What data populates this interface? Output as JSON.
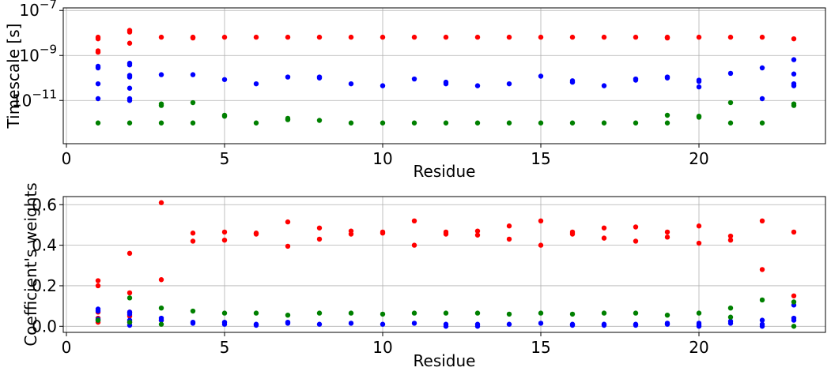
{
  "chart_data": [
    {
      "type": "scatter",
      "title": "",
      "xlabel": "Residue",
      "ylabel": "Timescale [s]",
      "yscale": "log",
      "xlim": [
        -0.1,
        24
      ],
      "ylim": [
        1.2e-13,
        1.3e-07
      ],
      "xticks": [
        0,
        5,
        10,
        15,
        20
      ],
      "xtick_labels": [
        "0",
        "5",
        "10",
        "15",
        "20"
      ],
      "yticks": [
        1e-11,
        1e-09,
        1e-07
      ],
      "ytick_labels": [
        [
          "10",
          "−11"
        ],
        [
          "10",
          "−9"
        ],
        [
          "10",
          "−7"
        ]
      ],
      "grid": true,
      "series": [
        {
          "color": "#ff0000",
          "points": [
            [
              1,
              5.5e-09
            ],
            [
              1,
              6.5e-09
            ],
            [
              1,
              1.4e-09
            ],
            [
              1,
              1.6e-09
            ],
            [
              2,
              1.1e-08
            ],
            [
              2,
              1.3e-08
            ],
            [
              2,
              3.5e-09
            ],
            [
              3,
              6.5e-09
            ],
            [
              4,
              6.5e-09
            ],
            [
              4,
              6e-09
            ],
            [
              5,
              6.5e-09
            ],
            [
              6,
              6.5e-09
            ],
            [
              7,
              6.5e-09
            ],
            [
              8,
              6.5e-09
            ],
            [
              9,
              6.5e-09
            ],
            [
              10,
              6.5e-09
            ],
            [
              11,
              6.5e-09
            ],
            [
              12,
              6.5e-09
            ],
            [
              13,
              6.5e-09
            ],
            [
              14,
              6.5e-09
            ],
            [
              15,
              6.5e-09
            ],
            [
              16,
              6.5e-09
            ],
            [
              17,
              6.5e-09
            ],
            [
              18,
              6.5e-09
            ],
            [
              19,
              6.5e-09
            ],
            [
              19,
              6e-09
            ],
            [
              20,
              6.5e-09
            ],
            [
              21,
              6.5e-09
            ],
            [
              22,
              6.5e-09
            ],
            [
              23,
              5.5e-09
            ]
          ]
        },
        {
          "color": "#0000ff",
          "points": [
            [
              1,
              2.8e-10
            ],
            [
              1,
              3.3e-10
            ],
            [
              1,
              5.5e-11
            ],
            [
              1,
              1.2e-11
            ],
            [
              2,
              4.5e-10
            ],
            [
              2,
              3.8e-10
            ],
            [
              2,
              1.3e-10
            ],
            [
              2,
              1.1e-10
            ],
            [
              2,
              3.5e-11
            ],
            [
              2,
              1.2e-11
            ],
            [
              2,
              1e-11
            ],
            [
              3,
              1.4e-10
            ],
            [
              4,
              1.4e-10
            ],
            [
              5,
              8.5e-11
            ],
            [
              6,
              5.5e-11
            ],
            [
              7,
              1.1e-10
            ],
            [
              8,
              1.1e-10
            ],
            [
              8,
              1e-10
            ],
            [
              9,
              5.5e-11
            ],
            [
              10,
              4.5e-11
            ],
            [
              11,
              9e-11
            ],
            [
              12,
              6.5e-11
            ],
            [
              12,
              5.5e-11
            ],
            [
              13,
              4.5e-11
            ],
            [
              14,
              5.5e-11
            ],
            [
              15,
              1.2e-10
            ],
            [
              16,
              7.5e-11
            ],
            [
              16,
              6.5e-11
            ],
            [
              17,
              4.5e-11
            ],
            [
              18,
              9e-11
            ],
            [
              18,
              8e-11
            ],
            [
              19,
              1.1e-10
            ],
            [
              19,
              1e-10
            ],
            [
              20,
              8e-11
            ],
            [
              20,
              7e-11
            ],
            [
              20,
              4e-11
            ],
            [
              21,
              1.6e-10
            ],
            [
              22,
              2.8e-10
            ],
            [
              22,
              1.2e-11
            ],
            [
              23,
              6.5e-10
            ],
            [
              23,
              1.5e-10
            ],
            [
              23,
              5.5e-11
            ],
            [
              23,
              4.5e-11
            ]
          ]
        },
        {
          "color": "#008000",
          "points": [
            [
              1,
              1e-12
            ],
            [
              2,
              1e-12
            ],
            [
              3,
              7e-12
            ],
            [
              3,
              6e-12
            ],
            [
              3,
              1e-12
            ],
            [
              4,
              8e-12
            ],
            [
              4,
              1e-12
            ],
            [
              5,
              2.2e-12
            ],
            [
              5,
              2e-12
            ],
            [
              6,
              1e-12
            ],
            [
              7,
              1.6e-12
            ],
            [
              7,
              1.4e-12
            ],
            [
              8,
              1.3e-12
            ],
            [
              9,
              1e-12
            ],
            [
              10,
              1e-12
            ],
            [
              11,
              1e-12
            ],
            [
              12,
              1e-12
            ],
            [
              13,
              1e-12
            ],
            [
              14,
              1e-12
            ],
            [
              15,
              1e-12
            ],
            [
              16,
              1e-12
            ],
            [
              17,
              1e-12
            ],
            [
              18,
              1e-12
            ],
            [
              19,
              2.2e-12
            ],
            [
              19,
              1e-12
            ],
            [
              20,
              2e-12
            ],
            [
              20,
              1.8e-12
            ],
            [
              21,
              8e-12
            ],
            [
              21,
              1e-12
            ],
            [
              22,
              1e-12
            ],
            [
              23,
              7e-12
            ],
            [
              23,
              6e-12
            ]
          ]
        }
      ]
    },
    {
      "type": "scatter",
      "title": "",
      "xlabel": "Residue",
      "ylabel": "Coefficient's weights",
      "yscale": "linear",
      "xlim": [
        -0.1,
        24
      ],
      "ylim": [
        -0.03,
        0.64
      ],
      "xticks": [
        0,
        5,
        10,
        15,
        20
      ],
      "xtick_labels": [
        "0",
        "5",
        "10",
        "15",
        "20"
      ],
      "yticks": [
        0.0,
        0.2,
        0.4,
        0.6
      ],
      "ytick_labels": [
        [
          "0.0"
        ],
        [
          "0.2"
        ],
        [
          "0.4"
        ],
        [
          "0.6"
        ]
      ],
      "grid": true,
      "series": [
        {
          "color": "#ff0000",
          "points": [
            [
              1,
              0.225
            ],
            [
              1,
              0.2
            ],
            [
              1,
              0.07
            ],
            [
              1,
              0.04
            ],
            [
              1,
              0.02
            ],
            [
              2,
              0.36
            ],
            [
              2,
              0.165
            ],
            [
              2,
              0.07
            ],
            [
              2,
              0.05
            ],
            [
              2,
              0.02
            ],
            [
              3,
              0.61
            ],
            [
              3,
              0.23
            ],
            [
              3,
              0.03
            ],
            [
              4,
              0.46
            ],
            [
              4,
              0.42
            ],
            [
              5,
              0.465
            ],
            [
              5,
              0.425
            ],
            [
              6,
              0.46
            ],
            [
              6,
              0.455
            ],
            [
              7,
              0.515
            ],
            [
              7,
              0.395
            ],
            [
              8,
              0.485
            ],
            [
              8,
              0.43
            ],
            [
              9,
              0.47
            ],
            [
              9,
              0.455
            ],
            [
              10,
              0.465
            ],
            [
              10,
              0.46
            ],
            [
              11,
              0.52
            ],
            [
              11,
              0.4
            ],
            [
              12,
              0.465
            ],
            [
              12,
              0.455
            ],
            [
              13,
              0.47
            ],
            [
              13,
              0.45
            ],
            [
              14,
              0.495
            ],
            [
              14,
              0.43
            ],
            [
              15,
              0.52
            ],
            [
              15,
              0.4
            ],
            [
              16,
              0.465
            ],
            [
              16,
              0.455
            ],
            [
              17,
              0.485
            ],
            [
              17,
              0.435
            ],
            [
              18,
              0.49
            ],
            [
              18,
              0.42
            ],
            [
              19,
              0.465
            ],
            [
              19,
              0.44
            ],
            [
              20,
              0.495
            ],
            [
              20,
              0.41
            ],
            [
              21,
              0.445
            ],
            [
              21,
              0.425
            ],
            [
              22,
              0.52
            ],
            [
              22,
              0.28
            ],
            [
              23,
              0.465
            ],
            [
              23,
              0.15
            ]
          ]
        },
        {
          "color": "#0000ff",
          "points": [
            [
              1,
              0.085
            ],
            [
              1,
              0.075
            ],
            [
              1,
              0.035
            ],
            [
              1,
              0.03
            ],
            [
              2,
              0.07
            ],
            [
              2,
              0.06
            ],
            [
              2,
              0.03
            ],
            [
              2,
              0.005
            ],
            [
              3,
              0.04
            ],
            [
              3,
              0.03
            ],
            [
              4,
              0.02
            ],
            [
              4,
              0.015
            ],
            [
              5,
              0.02
            ],
            [
              5,
              0.01
            ],
            [
              6,
              0.01
            ],
            [
              6,
              0.005
            ],
            [
              7,
              0.02
            ],
            [
              7,
              0.015
            ],
            [
              8,
              0.01
            ],
            [
              9,
              0.015
            ],
            [
              10,
              0.01
            ],
            [
              11,
              0.015
            ],
            [
              12,
              0.01
            ],
            [
              12,
              0.0
            ],
            [
              13,
              0.01
            ],
            [
              13,
              0.0
            ],
            [
              14,
              0.01
            ],
            [
              15,
              0.015
            ],
            [
              16,
              0.01
            ],
            [
              16,
              0.005
            ],
            [
              17,
              0.01
            ],
            [
              17,
              0.005
            ],
            [
              18,
              0.01
            ],
            [
              18,
              0.005
            ],
            [
              19,
              0.015
            ],
            [
              19,
              0.01
            ],
            [
              20,
              0.015
            ],
            [
              20,
              0.005
            ],
            [
              20,
              0.0
            ],
            [
              21,
              0.025
            ],
            [
              21,
              0.015
            ],
            [
              22,
              0.03
            ],
            [
              22,
              0.01
            ],
            [
              22,
              0.0
            ],
            [
              23,
              0.105
            ],
            [
              23,
              0.04
            ],
            [
              23,
              0.03
            ]
          ]
        },
        {
          "color": "#008000",
          "points": [
            [
              1,
              0.03
            ],
            [
              2,
              0.14
            ],
            [
              2,
              0.02
            ],
            [
              3,
              0.09
            ],
            [
              3,
              0.01
            ],
            [
              4,
              0.075
            ],
            [
              5,
              0.065
            ],
            [
              6,
              0.065
            ],
            [
              7,
              0.055
            ],
            [
              8,
              0.065
            ],
            [
              9,
              0.065
            ],
            [
              10,
              0.06
            ],
            [
              11,
              0.065
            ],
            [
              12,
              0.065
            ],
            [
              13,
              0.065
            ],
            [
              14,
              0.06
            ],
            [
              15,
              0.065
            ],
            [
              16,
              0.06
            ],
            [
              17,
              0.065
            ],
            [
              18,
              0.065
            ],
            [
              19,
              0.055
            ],
            [
              20,
              0.065
            ],
            [
              21,
              0.09
            ],
            [
              21,
              0.045
            ],
            [
              22,
              0.13
            ],
            [
              23,
              0.12
            ],
            [
              23,
              0.0
            ]
          ]
        }
      ]
    }
  ]
}
